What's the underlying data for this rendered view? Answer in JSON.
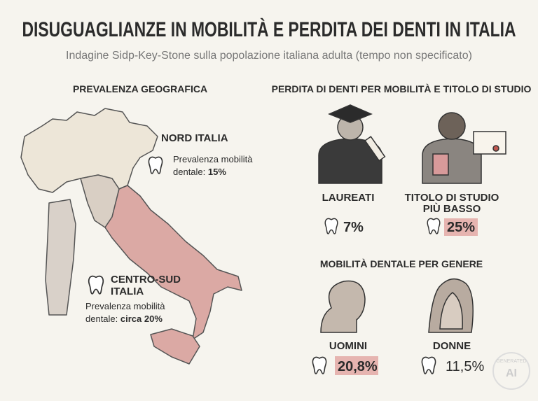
{
  "header": {
    "title": "DISUGUAGLIANZE IN MOBILITÀ E PERDITA DEI DENTI IN ITALIA",
    "subtitle": "Indagine Sidp-Key-Stone sulla popolazione italiana adulta (tempo non specificato)"
  },
  "geography": {
    "heading": "PREVALENZA GEOGRAFICA",
    "north": {
      "label": "NORD ITALIA",
      "desc_lines": [
        "Prevalenza mobilità",
        "dentale:"
      ],
      "value": "15%"
    },
    "south": {
      "label_lines": [
        "CENTRO-SUD",
        "ITALIA"
      ],
      "desc_lines": [
        "Prevalenza mobilità",
        "dentale:"
      ],
      "value": "circa 20%"
    }
  },
  "education": {
    "heading": "PERDITA DI DENTI PER MOBILITÀ E TITOLO DI STUDIO",
    "groups": [
      {
        "label_lines": [
          "LAUREATI"
        ],
        "value": "7%"
      },
      {
        "label_lines": [
          "TITOLO DI STUDIO",
          "PIÙ BASSO"
        ],
        "value": "25%"
      }
    ]
  },
  "gender": {
    "heading": "MOBILITÀ DENTALE PER GENERE",
    "groups": [
      {
        "label": "UOMINI",
        "value": "20,8%"
      },
      {
        "label": "DONNE",
        "value": "11,5%"
      }
    ]
  },
  "watermark": {
    "lines": [
      "GENERATED",
      "AI"
    ]
  }
}
